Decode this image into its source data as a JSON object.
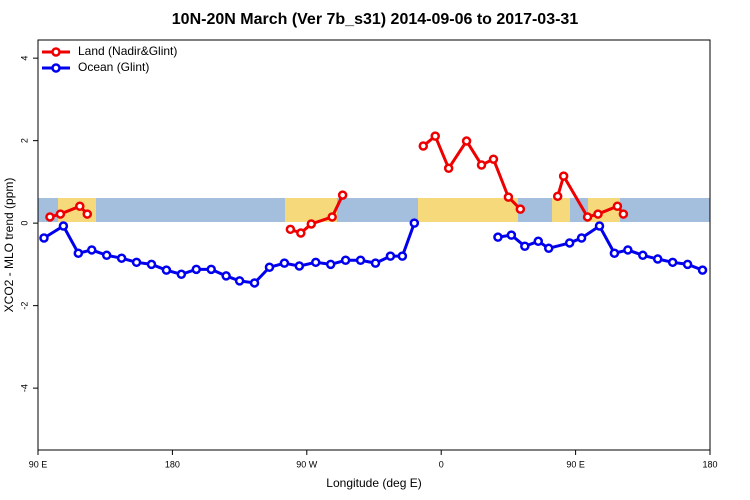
{
  "chart_data": {
    "type": "line",
    "title": "10N-20N March (Ver 7b_s31)   2014-09-06 to 2017-03-31",
    "x_label": "Longitude (deg E)",
    "y_label": "XCO2 - MLO trend (ppm)",
    "xlim": [
      90,
      540
    ],
    "ylim": [
      -5.5,
      4.44
    ],
    "xticks": [
      {
        "value": 90,
        "label": "90 E"
      },
      180,
      {
        "value": 270,
        "label": "90 W"
      },
      {
        "value": 360,
        "label": "0"
      },
      {
        "value": 450,
        "label": "90 E"
      },
      {
        "value": 540,
        "label": "180"
      }
    ],
    "yticks": [
      -4,
      -2,
      0,
      2,
      4
    ],
    "legend": "top-left",
    "series": [
      {
        "name": "Land (Nadir&Glint)",
        "color": "#ee0000",
        "x": [
          98,
          105,
          118,
          123,
          190,
          259,
          266,
          273,
          287,
          294,
          320,
          348,
          356,
          365,
          377,
          387,
          395,
          405,
          413,
          425,
          438,
          442,
          458,
          465,
          478,
          482
        ],
        "values": [
          0.15,
          0.22,
          0.41,
          0.22,
          null,
          -0.15,
          -0.24,
          -0.02,
          0.15,
          0.68,
          null,
          1.87,
          2.11,
          1.33,
          1.99,
          1.41,
          1.55,
          0.63,
          0.34,
          null,
          0.65,
          1.14,
          0.15,
          0.22,
          0.41,
          0.22
        ]
      },
      {
        "name": "Ocean (Glint)",
        "color": "#0000ee",
        "x": [
          94,
          107,
          117,
          126,
          136,
          146,
          156,
          166,
          176,
          186,
          196,
          206,
          216,
          225,
          235,
          245,
          255,
          265,
          276,
          286,
          296,
          306,
          316,
          326,
          334,
          342,
          370,
          398,
          407,
          416,
          425,
          432,
          446,
          454,
          466,
          476,
          485,
          495,
          505,
          515,
          525,
          535
        ],
        "values": [
          -0.36,
          -0.07,
          -0.73,
          -0.65,
          -0.78,
          -0.85,
          -0.95,
          -1.0,
          -1.14,
          -1.24,
          -1.12,
          -1.12,
          -1.28,
          -1.4,
          -1.45,
          -1.07,
          -0.97,
          -1.04,
          -0.95,
          -1.0,
          -0.9,
          -0.9,
          -0.97,
          -0.8,
          -0.8,
          0.0,
          null,
          -0.34,
          -0.29,
          -0.56,
          -0.44,
          -0.61,
          -0.48,
          -0.36,
          -0.07,
          -0.73,
          -0.65,
          -0.78,
          -0.87,
          -0.95,
          -1.0,
          -1.14
        ]
      }
    ]
  }
}
